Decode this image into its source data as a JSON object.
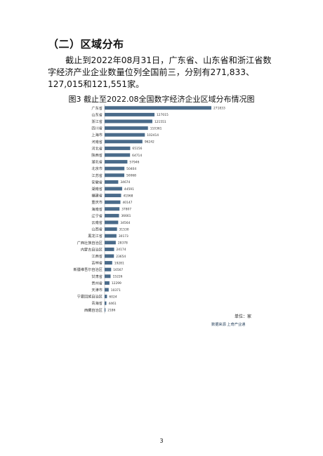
{
  "section": {
    "heading": "（二）区域分布"
  },
  "paragraph": "截止到2022年08月31日，广东省、山东省和浙江省数字经济产业企业数量位列全国前三，分别有271,833、127,015和121,551家。",
  "figure": {
    "title": "图3 截止至2022.08全国数字经济企业区域分布情况图",
    "unit": "单位：家",
    "source": "数据来源 上奇产业通",
    "bar_color": "#4a6b8a"
  },
  "chart_data": {
    "type": "bar",
    "orientation": "horizontal",
    "title": "图3 截止至2022.08全国数字经济企业区域分布情况图",
    "categories": [
      "广东省",
      "山东省",
      "浙江省",
      "四川省",
      "上海市",
      "河南省",
      "河北省",
      "陕西省",
      "湖北省",
      "北京市",
      "江苏省",
      "安徽省",
      "湖南省",
      "福建省",
      "重庆市",
      "海南省",
      "辽宁省",
      "云南省",
      "山西省",
      "黑龙江省",
      "广西壮族自治区",
      "内蒙古自治区",
      "江西省",
      "吉林省",
      "新疆维吾尔自治区",
      "甘肃省",
      "贵州省",
      "天津市",
      "宁夏回族自治区",
      "青海省",
      "西藏自治区"
    ],
    "values": [
      271833,
      127015,
      121551,
      110361,
      102414,
      96242,
      65156,
      64714,
      57946,
      50404,
      50068,
      34674,
      44591,
      41968,
      40147,
      37807,
      36661,
      34564,
      31530,
      30173,
      28378,
      24174,
      23654,
      19281,
      16567,
      15226,
      12299,
      10371,
      6024,
      4461,
      2186
    ],
    "xlim": [
      0,
      280000
    ],
    "legend": "none",
    "grid": false
  },
  "page": {
    "number": "3"
  }
}
